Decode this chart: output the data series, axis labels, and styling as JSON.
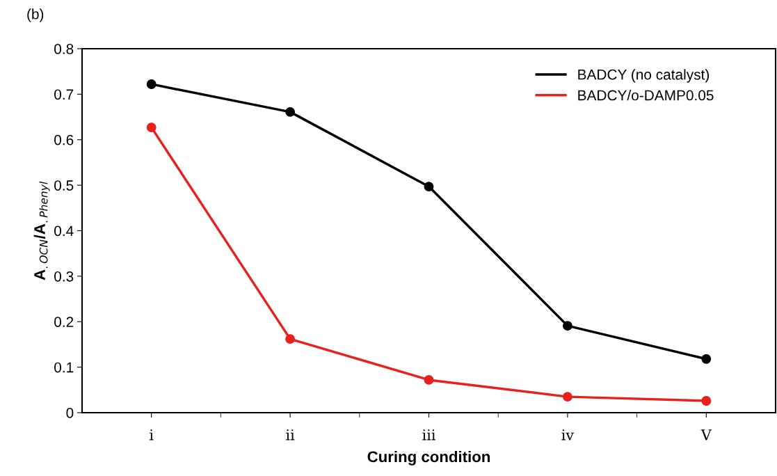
{
  "chart_data": {
    "type": "line",
    "xlabel": "Curing condition",
    "ylabel": "A$_{.OCN}$/A$_{.Phenyl}$",
    "annotations": [
      "(b)"
    ],
    "categories": [
      "i",
      "ii",
      "iii",
      "iv",
      "V"
    ],
    "series": [
      {
        "name": "BADCY (no catalyst)",
        "color": "#000000",
        "values": [
          0.722,
          0.661,
          0.497,
          0.191,
          0.118
        ]
      },
      {
        "name": "BADCY/o-DAMP0.05",
        "color": "#e8211d",
        "values": [
          0.627,
          0.162,
          0.072,
          0.035,
          0.026
        ]
      }
    ],
    "ylim": [
      0,
      0.8
    ],
    "yticks": [
      0,
      0.1,
      0.2,
      0.3,
      0.4,
      0.5,
      0.6,
      0.7,
      0.8
    ],
    "marker": "circle",
    "line_style": "solid",
    "grid": false,
    "legend": "top right"
  }
}
